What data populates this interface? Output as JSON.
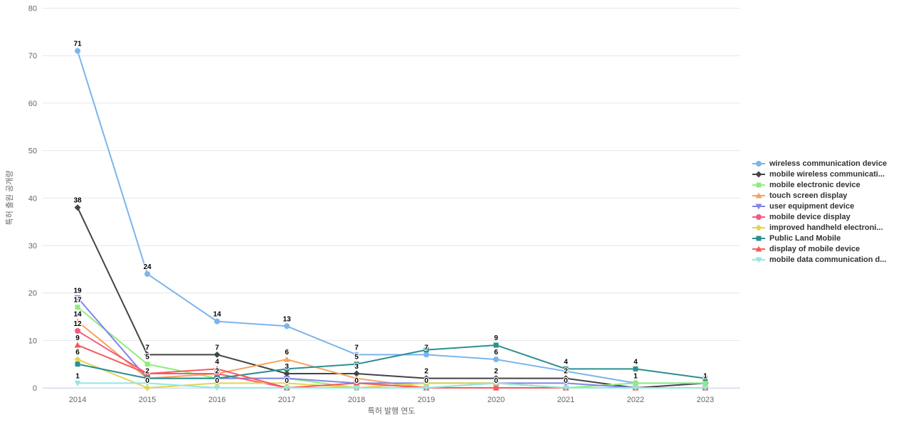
{
  "chart_data": {
    "type": "line",
    "title": "",
    "xlabel": "특허 발행 연도",
    "ylabel": "특허 출원 공개량",
    "ylim": [
      0,
      80
    ],
    "yticks": [
      0,
      10,
      20,
      30,
      40,
      50,
      60,
      70,
      80
    ],
    "categories": [
      "2014",
      "2015",
      "2016",
      "2017",
      "2018",
      "2019",
      "2020",
      "2021",
      "2022",
      "2023"
    ],
    "grid": true,
    "legend_position": "right",
    "series": [
      {
        "name": "wireless communication device",
        "color": "#7cb5ec",
        "marker": "circle",
        "values": [
          71,
          24,
          14,
          13,
          7,
          7,
          6,
          null,
          1,
          1
        ]
      },
      {
        "name": "mobile wireless communicati...",
        "color": "#434348",
        "marker": "diamond",
        "values": [
          38,
          7,
          7,
          3,
          3,
          2,
          2,
          2,
          0,
          1
        ]
      },
      {
        "name": "mobile electronic device",
        "color": "#90ed7d",
        "marker": "square",
        "values": [
          17,
          5,
          2,
          2,
          0,
          1,
          1,
          0,
          1,
          1
        ]
      },
      {
        "name": "touch screen display",
        "color": "#f7a35c",
        "marker": "triangle",
        "values": [
          14,
          2,
          3,
          6,
          2,
          0,
          1,
          0,
          0,
          0
        ]
      },
      {
        "name": "user equipment device",
        "color": "#8085e9",
        "marker": "triangle-down",
        "values": [
          19,
          2,
          2,
          2,
          1,
          1,
          1,
          1,
          0,
          0
        ]
      },
      {
        "name": "mobile device display",
        "color": "#f15c80",
        "marker": "circle",
        "values": [
          12,
          3,
          3,
          0,
          0,
          0,
          0,
          0,
          0,
          0
        ]
      },
      {
        "name": "improved handheld electroni...",
        "color": "#e4d354",
        "marker": "diamond",
        "values": [
          6,
          0,
          1,
          1,
          0,
          1,
          1,
          0,
          0,
          0
        ]
      },
      {
        "name": "Public Land Mobile",
        "color": "#2b908f",
        "marker": "square",
        "values": [
          5,
          2,
          2,
          4,
          5,
          8,
          9,
          4,
          4,
          2
        ]
      },
      {
        "name": "display of mobile device",
        "color": "#f45b5b",
        "marker": "triangle",
        "values": [
          9,
          3,
          4,
          0,
          1,
          0,
          0,
          0,
          0,
          0
        ]
      },
      {
        "name": "mobile data communication d...",
        "color": "#91e8e1",
        "marker": "triangle-down",
        "values": [
          1,
          1,
          0,
          0,
          0,
          0,
          1,
          0,
          0,
          0
        ]
      }
    ]
  },
  "colors": {
    "background": "#ffffff",
    "grid": "#e6e6e6",
    "axis_line": "#ccd6eb",
    "tick_label": "#666666",
    "axis_title": "#666666",
    "data_label": "#000000",
    "legend_text": "#333333"
  }
}
